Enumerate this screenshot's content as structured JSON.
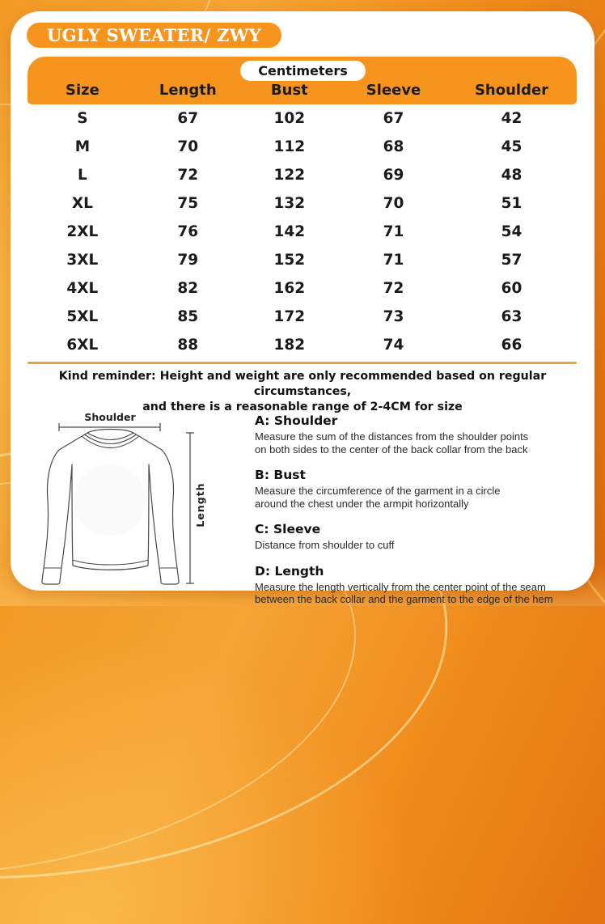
{
  "title": "UGLY SWEATER/ ZWY",
  "table": {
    "unit_label": "Centimeters",
    "columns": [
      "Size",
      "Length",
      "Bust",
      "Sleeve",
      "Shoulder"
    ],
    "rows": [
      [
        "S",
        "67",
        "102",
        "67",
        "42"
      ],
      [
        "M",
        "70",
        "112",
        "68",
        "45"
      ],
      [
        "L",
        "72",
        "122",
        "69",
        "48"
      ],
      [
        "XL",
        "75",
        "132",
        "70",
        "51"
      ],
      [
        "2XL",
        "76",
        "142",
        "71",
        "54"
      ],
      [
        "3XL",
        "79",
        "152",
        "71",
        "57"
      ],
      [
        "4XL",
        "82",
        "162",
        "72",
        "60"
      ],
      [
        "5XL",
        "85",
        "172",
        "73",
        "63"
      ],
      [
        "6XL",
        "88",
        "182",
        "74",
        "66"
      ]
    ]
  },
  "note": {
    "line1": "Kind reminder: Height and weight are only recommended based on regular circumstances,",
    "line2": "and there is a reasonable range of 2-4CM for size"
  },
  "diagram": {
    "shoulder_label": "Shoulder",
    "length_label": "Length"
  },
  "measurements": [
    {
      "heading": "A: Shoulder",
      "body": "Measure the sum of the distances from the shoulder points\non both sides to the center of the back collar from the back"
    },
    {
      "heading": "B: Bust",
      "body": "Measure the circumference of the garment in a circle\naround the chest under the armpit horizontally"
    },
    {
      "heading": "C: Sleeve",
      "body": "Distance from shoulder to cuff"
    },
    {
      "heading": "D: Length",
      "body": "Measure the length vertically from the center point of the seam\nbetween the back collar and the garment to the edge of the hem"
    }
  ],
  "colors": {
    "accent_orange": "#F7941E",
    "divider_amber": "#EBA43C",
    "text_dark": "#1B1B1B",
    "card_white": "#FFFFFF"
  }
}
